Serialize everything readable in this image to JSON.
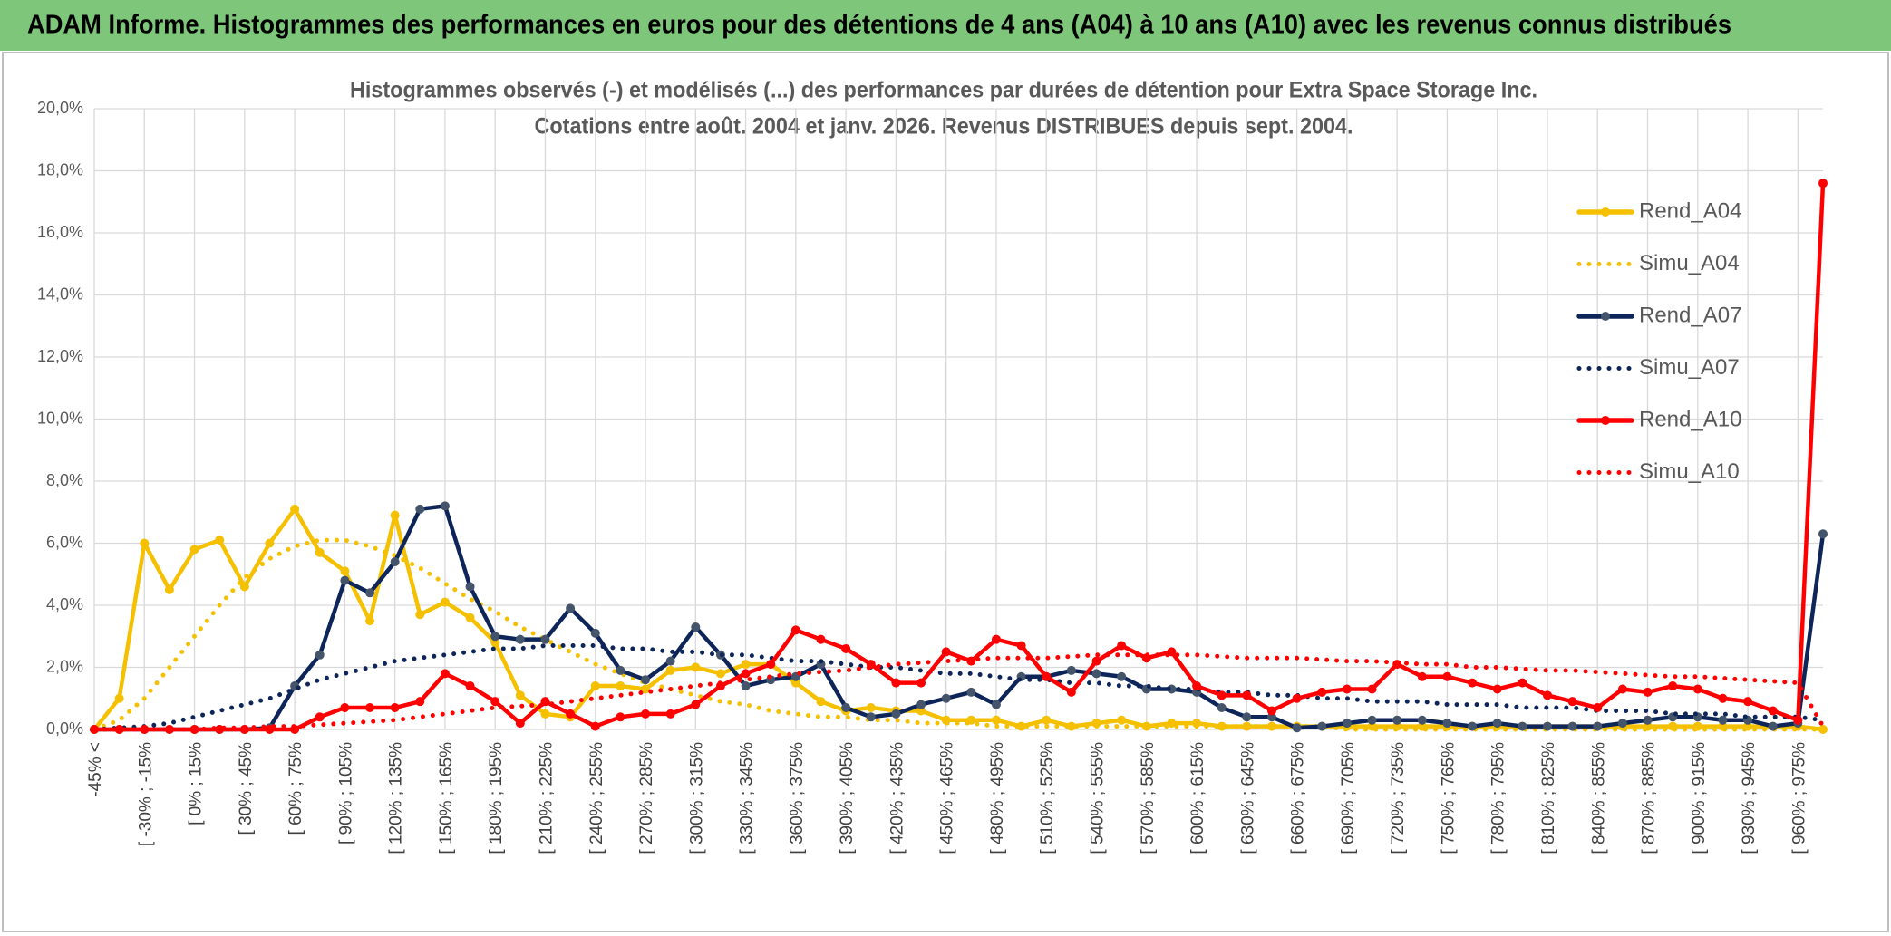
{
  "chart_data": {
    "type": "line",
    "title": "ADAM Informe. Histogrammes des performances en euros pour des détentions de 4 ans (A04) à 10 ans (A10) avec les revenus connus distribués",
    "subtitle": [
      "Histogrammes observés (-) et modélisés (...) des performances par durées de détention pour Extra Space Storage Inc.",
      "Cotations entre août. 2004 et janv. 2026. Revenus DISTRIBUES depuis sept. 2004."
    ],
    "categories": [
      "-45% <",
      null,
      "[ -30% ; -15%",
      null,
      "[ 0% ; 15%",
      null,
      "[ 30% ; 45%",
      null,
      "[ 60% ; 75%",
      null,
      "[ 90% ; 105%",
      null,
      "[ 120% ; 135%",
      null,
      "[ 150% ; 165%",
      null,
      "[ 180% ; 195%",
      null,
      "[ 210% ; 225%",
      null,
      "[ 240% ; 255%",
      null,
      "[ 270% ; 285%",
      null,
      "[ 300% ; 315%",
      null,
      "[ 330% ; 345%",
      null,
      "[ 360% ; 375%",
      null,
      "[ 390% ; 405%",
      null,
      "[ 420% ; 435%",
      null,
      "[ 450% ; 465%",
      null,
      "[ 480% ; 495%",
      null,
      "[ 510% ; 525%",
      null,
      "[ 540% ; 555%",
      null,
      "[ 570% ; 585%",
      null,
      "[ 600% ; 615%",
      null,
      "[ 630% ; 645%",
      null,
      "[ 660% ; 675%",
      null,
      "[ 690% ; 705%",
      null,
      "[ 720% ; 735%",
      null,
      "[ 750% ; 765%",
      null,
      "[ 780% ; 795%",
      null,
      "[ 810% ; 825%",
      null,
      "[ 840% ; 855%",
      null,
      "[ 870% ; 885%",
      null,
      "[ 900% ; 915%",
      null,
      "[ 930% ; 945%",
      null,
      "[ 960% ; 975%",
      null
    ],
    "series": [
      {
        "name": "Rend_A04",
        "color": "#f5c000",
        "marker_color": "#f5c000",
        "line_style": "solid",
        "values": [
          0,
          1.0,
          6.0,
          4.5,
          5.8,
          6.1,
          4.6,
          6.0,
          7.1,
          5.7,
          5.1,
          3.5,
          6.9,
          3.7,
          4.1,
          3.6,
          2.8,
          1.1,
          0.5,
          0.4,
          1.4,
          1.4,
          1.3,
          1.9,
          2.0,
          1.8,
          2.1,
          2.1,
          1.5,
          0.9,
          0.6,
          0.7,
          0.6,
          0.6,
          0.3,
          0.3,
          0.3,
          0.1,
          0.3,
          0.1,
          0.2,
          0.3,
          0.1,
          0.2,
          0.2,
          0.1,
          0.1,
          0.1,
          0.1,
          0.1,
          0.1,
          0.1,
          0.1,
          0.1,
          0.1,
          0.1,
          0.1,
          0.1,
          0.1,
          0.1,
          0.1,
          0.1,
          0.1,
          0.1,
          0.1,
          0.1,
          0.1,
          0.1,
          0.1,
          0
        ]
      },
      {
        "name": "Simu_A04",
        "color": "#f5c000",
        "line_style": "dotted",
        "values": [
          0,
          0.3,
          1.0,
          2.0,
          3.0,
          4.0,
          4.9,
          5.5,
          5.9,
          6.1,
          6.1,
          5.9,
          5.6,
          5.2,
          4.7,
          4.2,
          3.8,
          3.3,
          2.9,
          2.5,
          2.1,
          1.8,
          1.5,
          1.3,
          1.1,
          0.9,
          0.8,
          0.6,
          0.5,
          0.4,
          0.4,
          0.3,
          0.3,
          0.2,
          0.2,
          0.2,
          0.1,
          0.1,
          0.1,
          0.1,
          0.1,
          0.1,
          0.1,
          0.1,
          0.1,
          0.1,
          0.1,
          0.1,
          0.1,
          0.1,
          0,
          0,
          0,
          0,
          0,
          0,
          0,
          0,
          0,
          0,
          0,
          0,
          0,
          0,
          0,
          0,
          0,
          0,
          0,
          0
        ]
      },
      {
        "name": "Rend_A07",
        "color": "#0d2559",
        "marker_color": "#44546a",
        "line_style": "solid",
        "values": [
          0,
          0,
          0,
          0,
          0,
          0,
          0,
          0.05,
          1.4,
          2.4,
          4.8,
          4.4,
          5.4,
          7.1,
          7.2,
          4.6,
          3.0,
          2.9,
          2.9,
          3.9,
          3.1,
          1.9,
          1.6,
          2.2,
          3.3,
          2.4,
          1.4,
          1.6,
          1.7,
          2.1,
          0.7,
          0.4,
          0.5,
          0.8,
          1.0,
          1.2,
          0.8,
          1.7,
          1.7,
          1.9,
          1.8,
          1.7,
          1.3,
          1.3,
          1.2,
          0.7,
          0.4,
          0.4,
          0.05,
          0.1,
          0.2,
          0.3,
          0.3,
          0.3,
          0.2,
          0.1,
          0.2,
          0.1,
          0.1,
          0.1,
          0.1,
          0.2,
          0.3,
          0.4,
          0.4,
          0.3,
          0.3,
          0.1,
          0.2,
          6.3
        ]
      },
      {
        "name": "Simu_A07",
        "color": "#0d2559",
        "line_style": "dotted",
        "values": [
          0,
          0.05,
          0.1,
          0.2,
          0.4,
          0.6,
          0.8,
          1.0,
          1.3,
          1.6,
          1.8,
          2.0,
          2.2,
          2.3,
          2.4,
          2.5,
          2.6,
          2.6,
          2.7,
          2.7,
          2.7,
          2.6,
          2.6,
          2.5,
          2.5,
          2.4,
          2.4,
          2.3,
          2.2,
          2.2,
          2.1,
          2.0,
          2.0,
          1.9,
          1.8,
          1.8,
          1.7,
          1.6,
          1.6,
          1.5,
          1.5,
          1.4,
          1.4,
          1.3,
          1.3,
          1.2,
          1.2,
          1.1,
          1.1,
          1.0,
          1.0,
          0.9,
          0.9,
          0.9,
          0.8,
          0.8,
          0.8,
          0.7,
          0.7,
          0.7,
          0.6,
          0.6,
          0.6,
          0.5,
          0.5,
          0.5,
          0.4,
          0.4,
          0.4,
          0.3
        ]
      },
      {
        "name": "Rend_A10",
        "color": "#ff0000",
        "marker_color": "#ff0000",
        "line_style": "solid",
        "values": [
          0,
          0,
          0,
          0,
          0,
          0,
          0,
          0,
          0,
          0.4,
          0.7,
          0.7,
          0.7,
          0.9,
          1.8,
          1.4,
          0.9,
          0.2,
          0.9,
          0.5,
          0.1,
          0.4,
          0.5,
          0.5,
          0.8,
          1.4,
          1.8,
          2.1,
          3.2,
          2.9,
          2.6,
          2.1,
          1.5,
          1.5,
          2.5,
          2.2,
          2.9,
          2.7,
          1.7,
          1.2,
          2.2,
          2.7,
          2.3,
          2.5,
          1.4,
          1.1,
          1.1,
          0.6,
          1.0,
          1.2,
          1.3,
          1.3,
          2.1,
          1.7,
          1.7,
          1.5,
          1.3,
          1.5,
          1.1,
          0.9,
          0.7,
          1.3,
          1.2,
          1.4,
          1.3,
          1.0,
          0.9,
          0.6,
          0.3,
          17.6
        ]
      },
      {
        "name": "Simu_A10",
        "color": "#ff0000",
        "line_style": "dotted",
        "values": [
          0,
          0,
          0,
          0,
          0,
          0.05,
          0.05,
          0.1,
          0.1,
          0.15,
          0.2,
          0.25,
          0.3,
          0.4,
          0.5,
          0.6,
          0.7,
          0.75,
          0.8,
          0.9,
          1.0,
          1.1,
          1.2,
          1.3,
          1.4,
          1.5,
          1.6,
          1.7,
          1.8,
          1.85,
          1.9,
          2.0,
          2.1,
          2.15,
          2.2,
          2.25,
          2.3,
          2.3,
          2.3,
          2.35,
          2.4,
          2.4,
          2.4,
          2.4,
          2.4,
          2.35,
          2.3,
          2.3,
          2.3,
          2.25,
          2.2,
          2.2,
          2.15,
          2.1,
          2.1,
          2.0,
          2.0,
          1.95,
          1.9,
          1.9,
          1.85,
          1.8,
          1.75,
          1.7,
          1.7,
          1.65,
          1.6,
          1.55,
          1.5,
          0.1
        ]
      }
    ],
    "ylim": [
      0,
      20
    ],
    "yticks": [
      {
        "value": 0,
        "label": "0,0%"
      },
      {
        "value": 2,
        "label": "2,0%"
      },
      {
        "value": 4,
        "label": "4,0%"
      },
      {
        "value": 6,
        "label": "6,0%"
      },
      {
        "value": 8,
        "label": "8,0%"
      },
      {
        "value": 10,
        "label": "10,0%"
      },
      {
        "value": 12,
        "label": "12,0%"
      },
      {
        "value": 14,
        "label": "14,0%"
      },
      {
        "value": 16,
        "label": "16,0%"
      },
      {
        "value": 18,
        "label": "18,0%"
      },
      {
        "value": 20,
        "label": "20,0%"
      }
    ],
    "grid": true,
    "legend": "upper right"
  }
}
